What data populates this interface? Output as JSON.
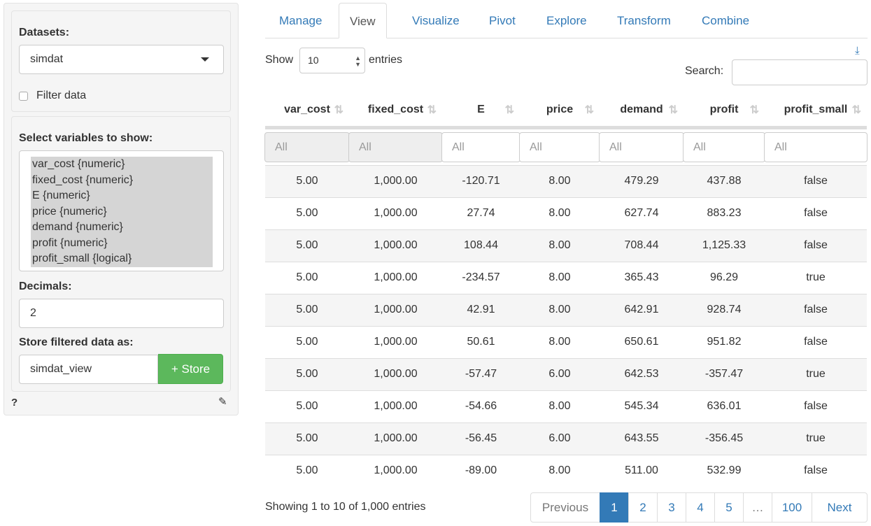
{
  "sidebar": {
    "datasets_label": "Datasets:",
    "dataset_value": "simdat",
    "filter_label": "Filter data",
    "filter_checked": false,
    "vars_label": "Select variables to show:",
    "variables": [
      "var_cost {numeric}",
      "fixed_cost {numeric}",
      "E {numeric}",
      "price {numeric}",
      "demand {numeric}",
      "profit {numeric}",
      "profit_small {logical}"
    ],
    "decimals_label": "Decimals:",
    "decimals_value": "2",
    "store_label": "Store filtered data as:",
    "store_value": "simdat_view",
    "store_button": "+ Store",
    "help": "?"
  },
  "tabs": [
    "Manage",
    "View",
    "Visualize",
    "Pivot",
    "Explore",
    "Transform",
    "Combine"
  ],
  "active_tab": "View",
  "table": {
    "show_label": "Show",
    "entries_value": "10",
    "entries_label": "entries",
    "search_label": "Search:",
    "search_value": "",
    "columns": [
      "var_cost",
      "fixed_cost",
      "E",
      "price",
      "demand",
      "profit",
      "profit_small"
    ],
    "filter_placeholder": "All",
    "rows": [
      [
        "5.00",
        "1,000.00",
        "-120.71",
        "8.00",
        "479.29",
        "437.88",
        "false"
      ],
      [
        "5.00",
        "1,000.00",
        "27.74",
        "8.00",
        "627.74",
        "883.23",
        "false"
      ],
      [
        "5.00",
        "1,000.00",
        "108.44",
        "8.00",
        "708.44",
        "1,125.33",
        "false"
      ],
      [
        "5.00",
        "1,000.00",
        "-234.57",
        "8.00",
        "365.43",
        "96.29",
        "true"
      ],
      [
        "5.00",
        "1,000.00",
        "42.91",
        "8.00",
        "642.91",
        "928.74",
        "false"
      ],
      [
        "5.00",
        "1,000.00",
        "50.61",
        "8.00",
        "650.61",
        "951.82",
        "false"
      ],
      [
        "5.00",
        "1,000.00",
        "-57.47",
        "6.00",
        "642.53",
        "-357.47",
        "true"
      ],
      [
        "5.00",
        "1,000.00",
        "-54.66",
        "8.00",
        "545.34",
        "636.01",
        "false"
      ],
      [
        "5.00",
        "1,000.00",
        "-56.45",
        "6.00",
        "643.55",
        "-356.45",
        "true"
      ],
      [
        "5.00",
        "1,000.00",
        "-89.00",
        "8.00",
        "511.00",
        "532.99",
        "false"
      ]
    ],
    "info": "Showing 1 to 10 of 1,000 entries"
  },
  "pagination": {
    "previous": "Previous",
    "pages": [
      "1",
      "2",
      "3",
      "4",
      "5",
      "…",
      "100"
    ],
    "current": "1",
    "next": "Next"
  },
  "colors": {
    "accent": "#337ab7",
    "store_green": "#5cb85c"
  }
}
